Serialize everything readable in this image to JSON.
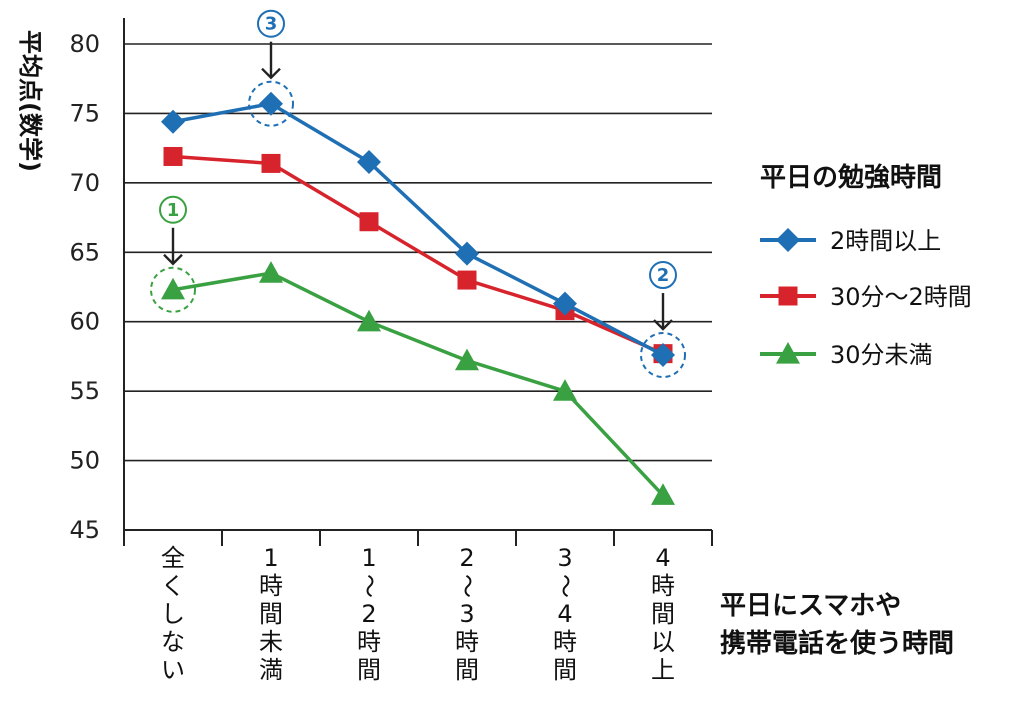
{
  "chart_data": {
    "type": "line",
    "ylabel": "平均点(数学)",
    "xlabel": "平日にスマホや携帯電話を使う時間",
    "xlabel_lines": [
      "平日にスマホや",
      "携帯電話を使う時間"
    ],
    "ylim": [
      45,
      80
    ],
    "yticks": [
      80,
      75,
      70,
      65,
      60,
      55,
      50,
      45
    ],
    "grid": true,
    "categories": [
      "全くしない",
      "1時間未満",
      "1〜2時間",
      "2〜3時間",
      "3〜4時間",
      "4時間以上"
    ],
    "category_lines": [
      [
        "全",
        "く",
        "し",
        "な",
        "い"
      ],
      [
        "1",
        "時",
        "間",
        "未",
        "満"
      ],
      [
        "1",
        "〜",
        "2",
        "時",
        "間"
      ],
      [
        "2",
        "〜",
        "3",
        "時",
        "間"
      ],
      [
        "3",
        "〜",
        "4",
        "時",
        "間"
      ],
      [
        "4",
        "時",
        "間",
        "以",
        "上"
      ]
    ],
    "legend_title": "平日の勉強時間",
    "legend_position": "right",
    "series": [
      {
        "name": "2時間以上",
        "values": [
          74.4,
          75.7,
          71.5,
          64.9,
          61.3,
          57.6
        ],
        "color": "#1f6fb5",
        "marker": "diamond"
      },
      {
        "name": "30分〜2時間",
        "values": [
          71.9,
          71.4,
          67.2,
          63.0,
          60.8,
          57.7
        ],
        "color": "#d7242c",
        "marker": "square"
      },
      {
        "name": "30分未満",
        "values": [
          62.3,
          63.5,
          60.0,
          57.2,
          55.0,
          47.5
        ],
        "color": "#3aa142",
        "marker": "triangle"
      }
    ],
    "annotations": [
      {
        "label": "①",
        "series": 2,
        "index": 0,
        "color": "#3aa142"
      },
      {
        "label": "②",
        "series": 0,
        "index": 5,
        "color": "#1f6fb5"
      },
      {
        "label": "③",
        "series": 0,
        "index": 1,
        "color": "#1f6fb5"
      }
    ]
  }
}
